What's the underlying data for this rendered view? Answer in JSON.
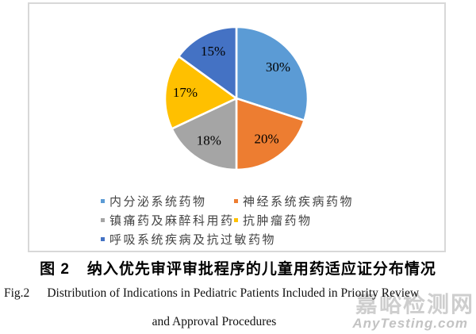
{
  "chart_data": {
    "type": "pie",
    "labels": [
      "内分泌系统药物",
      "神经系统疾病药物",
      "镇痛药及麻醉科用药",
      "抗肿瘤药物",
      "呼吸系统疾病及抗过敏药物"
    ],
    "values": [
      30,
      20,
      18,
      17,
      15
    ],
    "value_labels": [
      "30%",
      "20%",
      "18%",
      "17%",
      "15%"
    ],
    "colors": [
      "#5B9BD5",
      "#ED7D31",
      "#A5A5A5",
      "#FFC000",
      "#4472C4"
    ],
    "start_angle_deg": 0,
    "direction": "clockwise",
    "slice_border_color": "#FFFFFF",
    "legend_position": "bottom",
    "title": ""
  },
  "captions": {
    "zh_label": "图 2",
    "zh_title": "纳入优先审评审批程序的儿童用药适应证分布情况",
    "en_label": "Fig.2",
    "en_line1": "Distribution of Indications in Pediatric Patients Included in Priority Review",
    "en_line2": "and Approval Procedures"
  },
  "watermark": {
    "cn": "嘉峪检测网",
    "en": "AnyTesting.com"
  }
}
